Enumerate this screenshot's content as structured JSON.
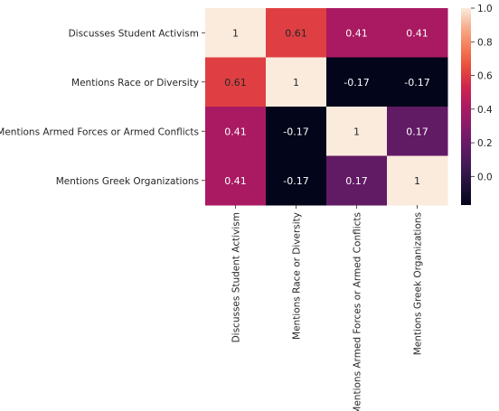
{
  "chart_data": {
    "type": "heatmap",
    "rows": [
      "Discusses Student Activism",
      "Mentions Race or Diversity",
      "Mentions Armed Forces or Armed Conflicts",
      "Mentions Greek Organizations "
    ],
    "columns": [
      "Discusses Student Activism",
      "Mentions Race or Diversity",
      "Mentions Armed Forces or Armed Conflicts",
      "Mentions Greek Organizations"
    ],
    "values": [
      [
        1,
        0.61,
        0.41,
        0.41
      ],
      [
        0.61,
        1,
        -0.17,
        -0.17
      ],
      [
        0.41,
        -0.17,
        1,
        0.17
      ],
      [
        0.41,
        -0.17,
        0.17,
        1
      ]
    ],
    "annotations": [
      [
        "1",
        "0.61",
        "0.41",
        "0.41"
      ],
      [
        "0.61",
        "1",
        "-0.17",
        "-0.17"
      ],
      [
        "0.41",
        "-0.17",
        "1",
        "0.17"
      ],
      [
        "0.41",
        "-0.17",
        "0.17",
        "1"
      ]
    ],
    "colorbar": {
      "range": [
        -0.17,
        1.0
      ],
      "ticks": [
        0.0,
        0.2,
        0.4,
        0.6,
        0.8,
        1.0
      ],
      "tick_labels": [
        "0.0",
        "0.2",
        "0.4",
        "0.6",
        "0.8",
        "1.0"
      ],
      "colormap": "rocket"
    },
    "grid": false,
    "legend": "colorbar-right"
  }
}
